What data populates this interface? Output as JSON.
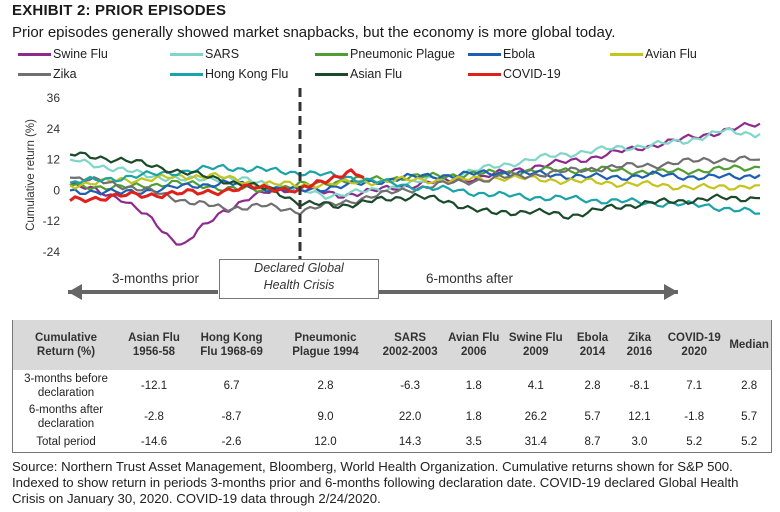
{
  "exhibit_label": "EXHIBIT 2: PRIOR EPISODES",
  "subtitle": "Prior episodes generally showed market snapbacks, but the economy is more global today.",
  "chart_data": {
    "type": "line",
    "ylabel": "Cumulative return (%)",
    "yticks": [
      36,
      24,
      12,
      0,
      -12,
      -24
    ],
    "ylim": [
      -27,
      36
    ],
    "x_range_days": [
      -90,
      180
    ],
    "event_day": 0,
    "event_label": "Declared Global Health Crisis",
    "event_label_line1": "Declared Global",
    "event_label_line2": "Health Crisis",
    "before_label": "3-months prior",
    "after_label": "6-months after",
    "grid": false,
    "legend_position": "top",
    "series": [
      {
        "name": "Swine Flu",
        "color": "#8e2a8e",
        "x": [
          -90,
          -80,
          -70,
          -60,
          -50,
          -45,
          -40,
          -30,
          -20,
          -10,
          0,
          15,
          30,
          50,
          70,
          90,
          110,
          130,
          150,
          170,
          180
        ],
        "y": [
          2,
          0,
          -3,
          -10,
          -19,
          -21,
          -16,
          -8,
          -3,
          0,
          1,
          -2,
          0,
          3,
          5,
          9,
          12,
          16,
          20,
          24,
          26
        ]
      },
      {
        "name": "SARS",
        "color": "#7fd6c8",
        "x": [
          -90,
          -75,
          -60,
          -45,
          -30,
          -15,
          0,
          10,
          30,
          50,
          70,
          90,
          110,
          130,
          150,
          165,
          180
        ],
        "y": [
          12,
          9,
          6,
          4,
          5,
          3,
          0,
          -2,
          0,
          4,
          8,
          12,
          15,
          17,
          19,
          23,
          22
        ]
      },
      {
        "name": "Pneumonic Plague",
        "color": "#4f9e2f",
        "x": [
          -90,
          -70,
          -50,
          -30,
          -15,
          0,
          20,
          40,
          60,
          80,
          100,
          120,
          140,
          160,
          180
        ],
        "y": [
          2,
          1,
          3,
          1,
          0,
          2,
          4,
          5,
          6,
          7,
          8,
          8,
          7,
          8,
          9
        ]
      },
      {
        "name": "Ebola",
        "color": "#1d5fb4",
        "x": [
          -90,
          -70,
          -50,
          -30,
          -15,
          0,
          20,
          40,
          60,
          80,
          100,
          120,
          140,
          160,
          180
        ],
        "y": [
          0,
          -1,
          1,
          3,
          1,
          0,
          2,
          5,
          6,
          7,
          6,
          5,
          6,
          5,
          6
        ]
      },
      {
        "name": "Avian Flu",
        "color": "#c4c41c",
        "x": [
          -90,
          -70,
          -50,
          -35,
          -20,
          0,
          20,
          40,
          60,
          80,
          100,
          120,
          140,
          160,
          180
        ],
        "y": [
          2,
          4,
          5,
          6,
          3,
          2,
          3,
          4,
          4,
          5,
          4,
          3,
          2,
          1,
          2
        ]
      },
      {
        "name": "Zika",
        "color": "#707070",
        "x": [
          -90,
          -75,
          -60,
          -45,
          -30,
          -15,
          0,
          20,
          40,
          60,
          80,
          100,
          120,
          140,
          160,
          180
        ],
        "y": [
          5,
          3,
          0,
          -4,
          -7,
          -6,
          -8,
          -4,
          0,
          3,
          5,
          7,
          9,
          10,
          12,
          12
        ]
      },
      {
        "name": "Hong Kong Flu",
        "color": "#1aa3a8",
        "x": [
          -90,
          -70,
          -50,
          -30,
          -15,
          0,
          20,
          40,
          60,
          80,
          100,
          120,
          140,
          160,
          180
        ],
        "y": [
          3,
          5,
          7,
          9,
          8,
          7,
          5,
          2,
          0,
          -2,
          -3,
          -4,
          -5,
          -6,
          -9
        ]
      },
      {
        "name": "Asian Flu",
        "color": "#1a4a2a",
        "x": [
          -90,
          -80,
          -70,
          -60,
          -50,
          -40,
          -30,
          -20,
          -10,
          0,
          15,
          30,
          45,
          60,
          75,
          90,
          105,
          120,
          135,
          150,
          165,
          180
        ],
        "y": [
          14,
          13,
          12,
          10,
          8,
          6,
          4,
          2,
          0,
          -5,
          -6,
          -4,
          -2,
          -5,
          -9,
          -8,
          -10,
          -7,
          -5,
          -4,
          -3,
          -3
        ]
      },
      {
        "name": "COVID-19",
        "color": "#e0201a",
        "x": [
          -90,
          -80,
          -70,
          -60,
          -50,
          -40,
          -30,
          -20,
          -10,
          0,
          5,
          10,
          15,
          20,
          25
        ],
        "y": [
          -4,
          -3,
          -2,
          -2,
          -1,
          -1,
          0,
          1,
          1,
          0,
          2,
          4,
          6,
          7,
          5
        ]
      }
    ]
  },
  "table": {
    "headers": [
      "Cumulative Return (%)",
      "Asian Flu 1956-58",
      "Hong Kong Flu 1968-69",
      "Pneumonic Plague 1994",
      "SARS 2002-2003",
      "Avian Flu 2006",
      "Swine Flu 2009",
      "Ebola 2014",
      "Zika 2016",
      "COVID-19 2020",
      "Median"
    ],
    "rows": [
      {
        "label": "3-months before declaration",
        "values": [
          "-12.1",
          "6.7",
          "2.8",
          "-6.3",
          "1.8",
          "4.1",
          "2.8",
          "-8.1",
          "7.1",
          "2.8"
        ]
      },
      {
        "label": "6-months after declaration",
        "values": [
          "-2.8",
          "-8.7",
          "9.0",
          "22.0",
          "1.8",
          "26.2",
          "5.7",
          "12.1",
          "-1.8",
          "5.7"
        ]
      },
      {
        "label": "Total period",
        "values": [
          "-14.6",
          "-2.6",
          "12.0",
          "14.3",
          "3.5",
          "31.4",
          "8.7",
          "3.0",
          "5.2",
          "5.2"
        ]
      }
    ]
  },
  "source_note": "Source: Northern Trust Asset Management, Bloomberg, World Health Organization. Cumulative returns shown for S&P 500. Indexed to show return in periods 3-months prior and 6-months following declaration date. COVID-19 declared Global Health Crisis on January 30, 2020. COVID-19 data through 2/24/2020."
}
